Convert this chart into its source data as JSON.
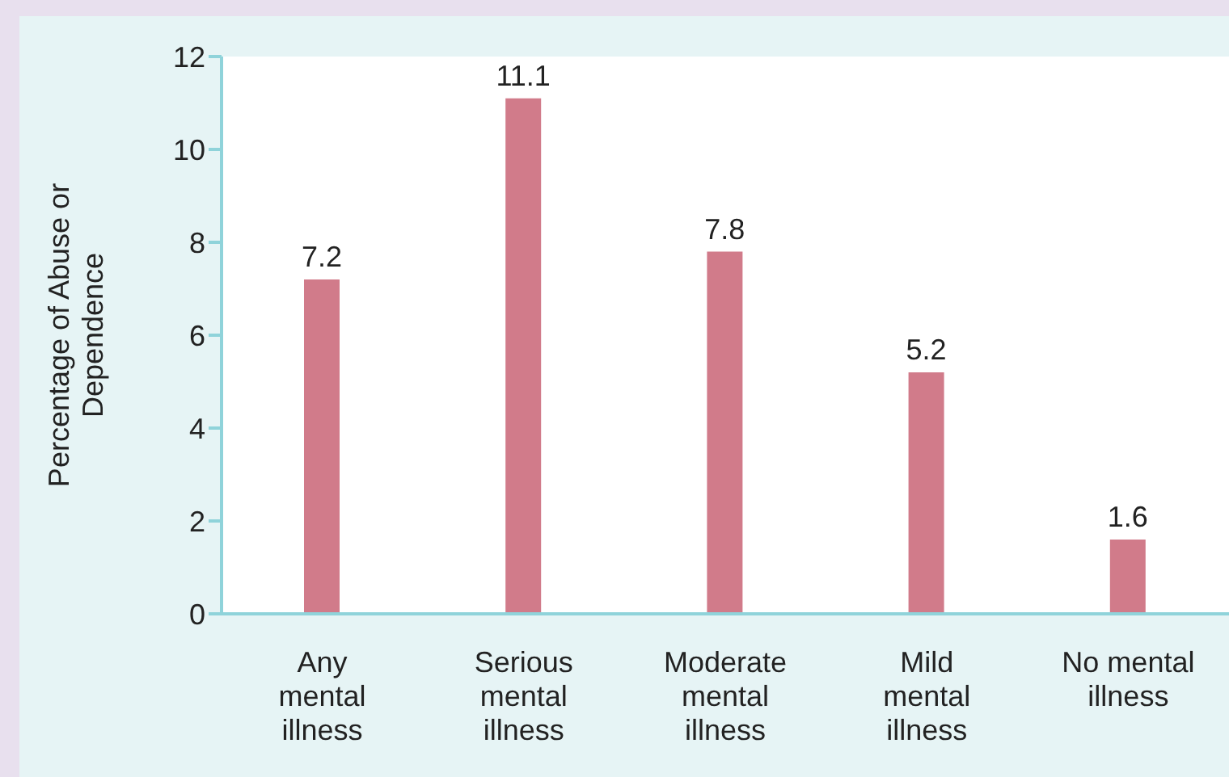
{
  "chart_data": {
    "type": "bar",
    "ylabel": "Percentage of Abuse or Dependence",
    "categories": [
      "Any mental illness",
      "Serious mental illness",
      "Moderate mental illness",
      "Mild mental illness",
      "No mental illness"
    ],
    "values": [
      7.2,
      11.1,
      7.8,
      5.2,
      1.6
    ],
    "color": "#d17b8a",
    "ylim": [
      0,
      12
    ],
    "yticks": [
      0,
      2,
      4,
      6,
      8,
      10,
      12
    ],
    "grid": false,
    "data_labels": true
  }
}
